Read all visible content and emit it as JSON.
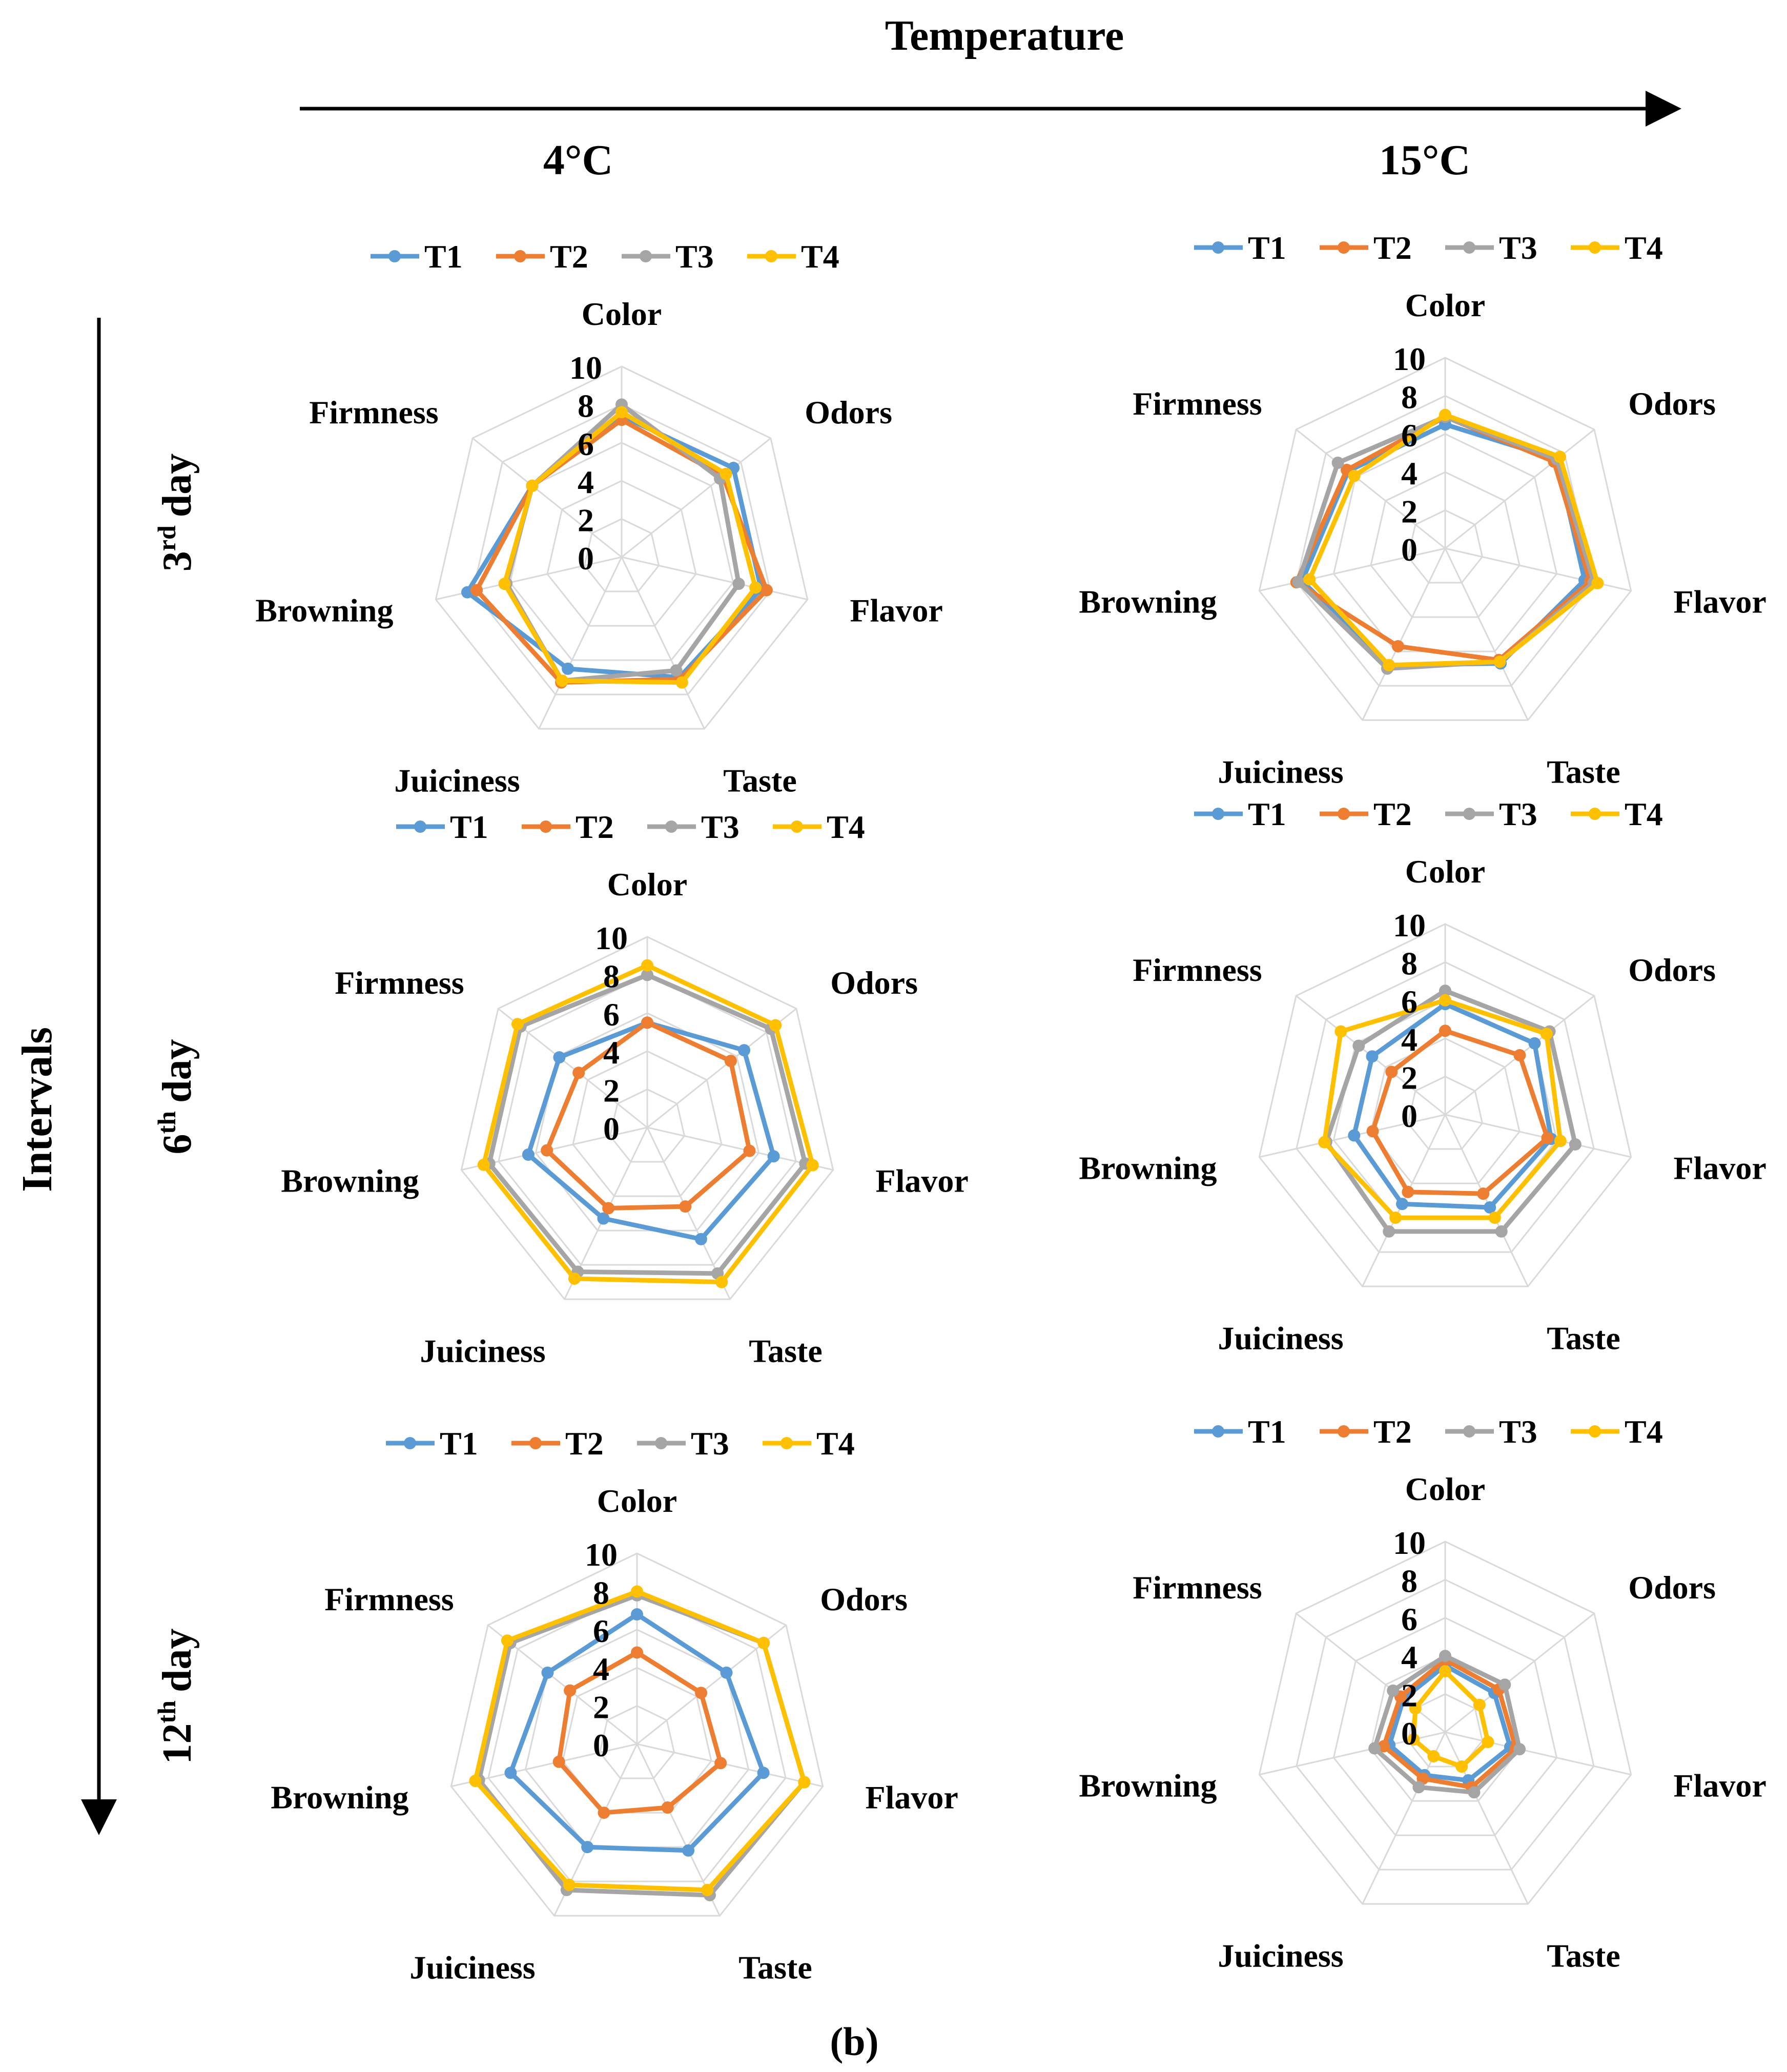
{
  "header": {
    "temperature_label": "Temperature",
    "intervals_label": "Intervals",
    "col_labels": [
      "4°C",
      "15°C"
    ],
    "row_labels": [
      {
        "num": "3",
        "sup": "rd",
        "word": "day"
      },
      {
        "num": "6",
        "sup": "th",
        "word": "day"
      },
      {
        "num": "12",
        "sup": "th",
        "word": "day"
      }
    ],
    "caption": "(b)"
  },
  "series_style": [
    {
      "name": "T1",
      "color": "#5B9BD5"
    },
    {
      "name": "T2",
      "color": "#ED7D31"
    },
    {
      "name": "T3",
      "color": "#A5A5A5"
    },
    {
      "name": "T4",
      "color": "#FFC000"
    }
  ],
  "chart_data": [
    {
      "type": "radar",
      "id": "4C-day3",
      "temperature": "4°C",
      "interval": "3rd day",
      "axes": [
        "Color",
        "Odors",
        "Flavor",
        "Taste",
        "Juiciness",
        "Browning",
        "Firmness"
      ],
      "ticks": [
        "10",
        "8",
        "6",
        "4",
        "2",
        "0"
      ],
      "range": [
        0,
        10
      ],
      "series": [
        {
          "name": "T1",
          "values": [
            7.4,
            7.5,
            7.5,
            7.0,
            6.5,
            8.3,
            6.0
          ]
        },
        {
          "name": "T2",
          "values": [
            7.2,
            6.8,
            7.8,
            7.1,
            7.3,
            7.8,
            6.0
          ]
        },
        {
          "name": "T3",
          "values": [
            8.0,
            6.6,
            6.3,
            6.6,
            7.2,
            6.2,
            6.0
          ]
        },
        {
          "name": "T4",
          "values": [
            7.6,
            7.0,
            7.2,
            7.3,
            7.2,
            6.3,
            6.0
          ]
        }
      ]
    },
    {
      "type": "radar",
      "id": "15C-day3",
      "temperature": "15°C",
      "interval": "3rd day",
      "axes": [
        "Color",
        "Odors",
        "Flavor",
        "Taste",
        "Juiciness",
        "Browning",
        "Firmness"
      ],
      "ticks": [
        "10",
        "8",
        "6",
        "4",
        "2",
        "0"
      ],
      "range": [
        0,
        10
      ],
      "series": [
        {
          "name": "T1",
          "values": [
            6.5,
            7.5,
            7.5,
            6.7,
            6.8,
            7.7,
            6.5
          ]
        },
        {
          "name": "T2",
          "values": [
            6.9,
            7.3,
            7.8,
            6.5,
            5.7,
            8.0,
            6.6
          ]
        },
        {
          "name": "T3",
          "values": [
            6.9,
            7.5,
            8.0,
            6.6,
            7.0,
            7.9,
            7.2
          ]
        },
        {
          "name": "T4",
          "values": [
            7.0,
            7.7,
            8.2,
            6.6,
            6.8,
            7.3,
            6.1
          ]
        }
      ]
    },
    {
      "type": "radar",
      "id": "4C-day6",
      "temperature": "4°C",
      "interval": "6th day",
      "axes": [
        "Color",
        "Odors",
        "Flavor",
        "Taste",
        "Juiciness",
        "Browning",
        "Firmness"
      ],
      "ticks": [
        "10",
        "8",
        "6",
        "4",
        "2",
        "0"
      ],
      "range": [
        0,
        10
      ],
      "series": [
        {
          "name": "T1",
          "values": [
            5.5,
            6.5,
            6.8,
            6.5,
            5.3,
            6.4,
            5.9
          ]
        },
        {
          "name": "T2",
          "values": [
            5.5,
            5.6,
            5.5,
            4.6,
            4.7,
            5.4,
            4.6
          ]
        },
        {
          "name": "T3",
          "values": [
            8.0,
            8.3,
            8.5,
            8.5,
            8.4,
            8.5,
            8.5
          ]
        },
        {
          "name": "T4",
          "values": [
            8.5,
            8.6,
            8.9,
            9.0,
            8.8,
            8.8,
            8.7
          ]
        }
      ]
    },
    {
      "type": "radar",
      "id": "15C-day6",
      "temperature": "15°C",
      "interval": "6th day",
      "axes": [
        "Color",
        "Odors",
        "Flavor",
        "Taste",
        "Juiciness",
        "Browning",
        "Firmness"
      ],
      "ticks": [
        "10",
        "8",
        "6",
        "4",
        "2",
        "0"
      ],
      "range": [
        0,
        10
      ],
      "series": [
        {
          "name": "T1",
          "values": [
            5.8,
            6.0,
            5.7,
            5.4,
            5.2,
            4.9,
            4.9
          ]
        },
        {
          "name": "T2",
          "values": [
            4.4,
            5.0,
            5.5,
            4.6,
            4.5,
            3.9,
            3.6
          ]
        },
        {
          "name": "T3",
          "values": [
            6.5,
            7.0,
            7.0,
            6.8,
            6.8,
            6.4,
            5.8
          ]
        },
        {
          "name": "T4",
          "values": [
            6.0,
            6.8,
            6.2,
            6.0,
            6.0,
            6.5,
            7.0
          ]
        }
      ]
    },
    {
      "type": "radar",
      "id": "4C-day12",
      "temperature": "4°C",
      "interval": "12th day",
      "axes": [
        "Color",
        "Odors",
        "Flavor",
        "Taste",
        "Juiciness",
        "Browning",
        "Firmness"
      ],
      "ticks": [
        "10",
        "8",
        "6",
        "4",
        "2",
        "0"
      ],
      "range": [
        0,
        10
      ],
      "series": [
        {
          "name": "T1",
          "values": [
            6.8,
            6.0,
            6.8,
            6.2,
            6.0,
            6.8,
            6.0
          ]
        },
        {
          "name": "T2",
          "values": [
            4.8,
            4.3,
            4.5,
            3.7,
            4.0,
            4.2,
            4.5
          ]
        },
        {
          "name": "T3",
          "values": [
            7.8,
            8.5,
            9.0,
            8.8,
            8.5,
            8.5,
            8.5
          ]
        },
        {
          "name": "T4",
          "values": [
            8.0,
            8.5,
            9.0,
            8.5,
            8.2,
            8.7,
            8.7
          ]
        }
      ]
    },
    {
      "type": "radar",
      "id": "15C-day12",
      "temperature": "15°C",
      "interval": "12th day",
      "axes": [
        "Color",
        "Odors",
        "Flavor",
        "Taste",
        "Juiciness",
        "Browning",
        "Firmness"
      ],
      "ticks": [
        "10",
        "8",
        "6",
        "4",
        "2",
        "0"
      ],
      "range": [
        0,
        10
      ],
      "series": [
        {
          "name": "T1",
          "values": [
            3.5,
            3.3,
            3.5,
            2.8,
            2.5,
            3.0,
            2.8
          ]
        },
        {
          "name": "T2",
          "values": [
            3.8,
            3.6,
            3.8,
            3.2,
            2.7,
            3.3,
            3.0
          ]
        },
        {
          "name": "T3",
          "values": [
            4.0,
            4.0,
            4.0,
            3.5,
            3.2,
            3.8,
            3.5
          ]
        },
        {
          "name": "T4",
          "values": [
            3.2,
            2.3,
            2.3,
            2.0,
            1.4,
            1.7,
            2.0
          ]
        }
      ]
    }
  ]
}
